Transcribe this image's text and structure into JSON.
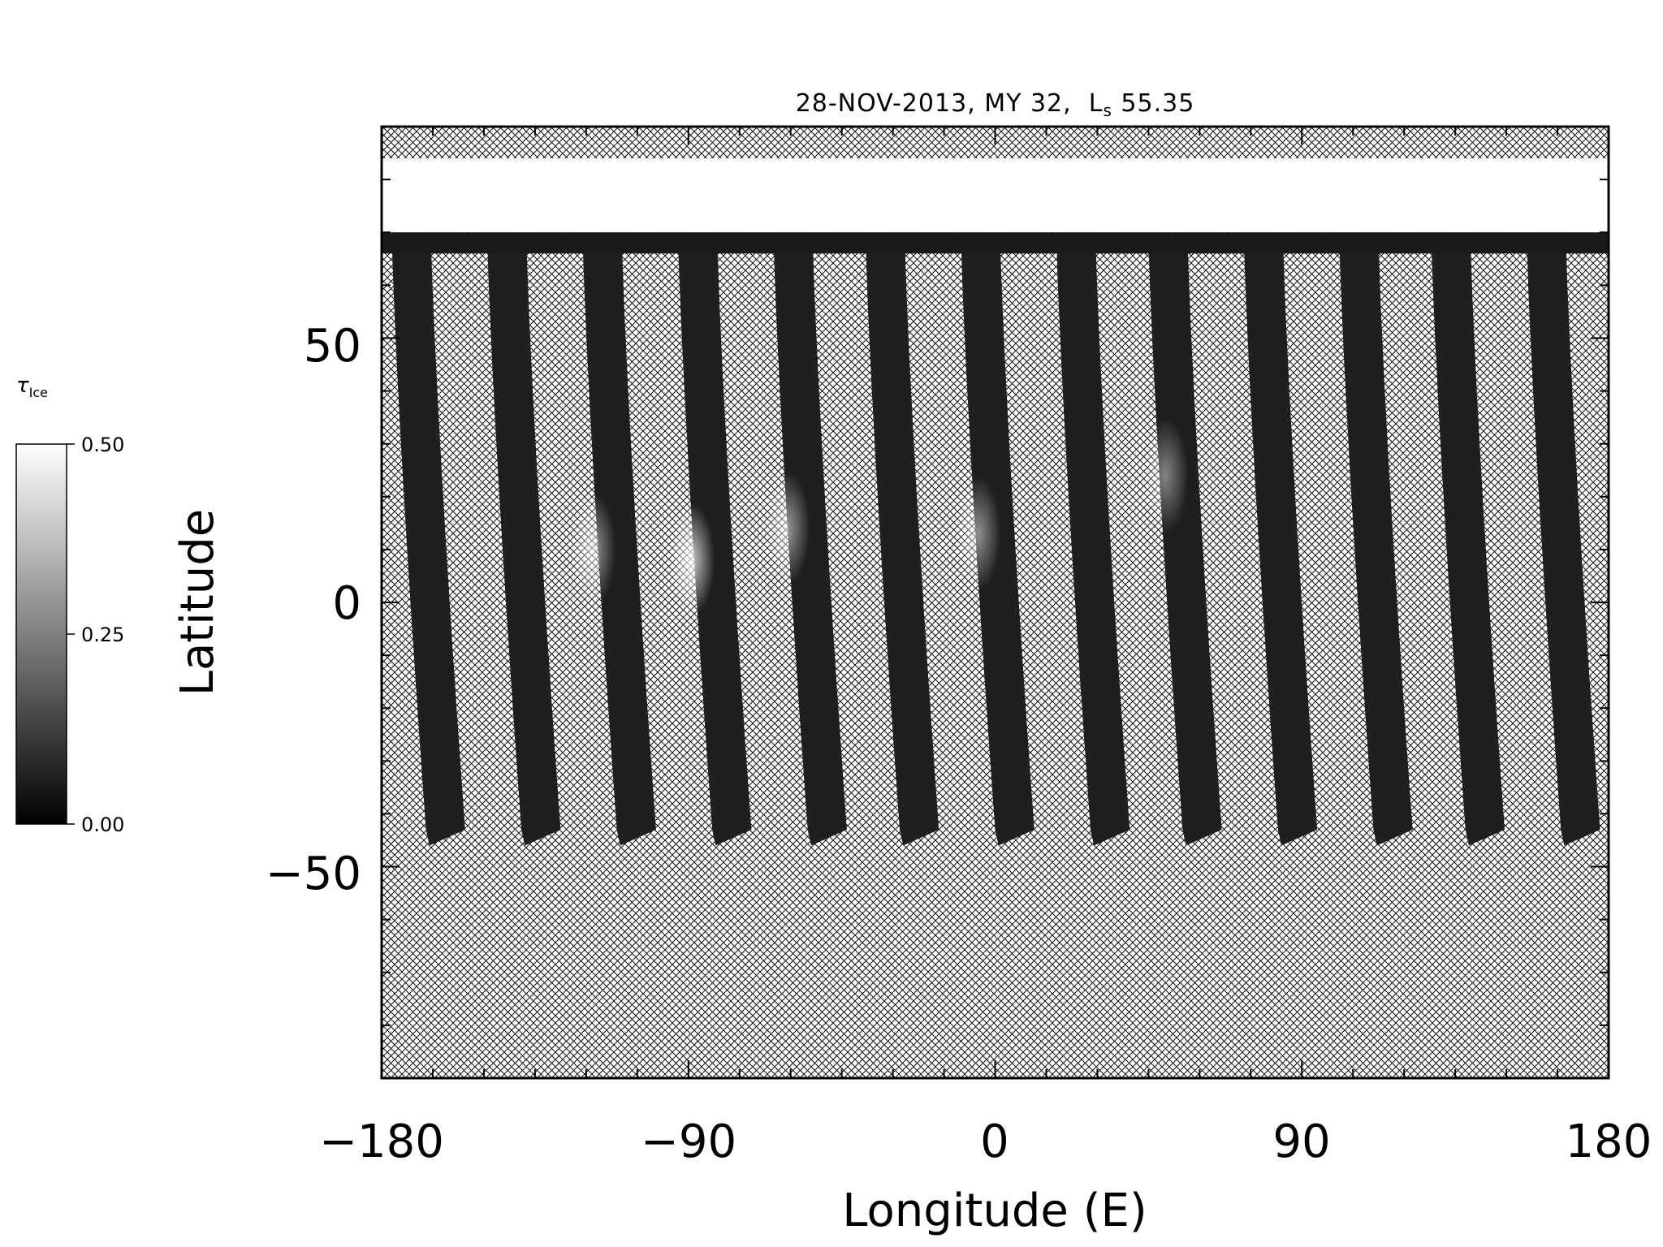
{
  "chart_data": {
    "type": "heatmap",
    "title": "28-NOV-2013, MY 32,  L",
    "title_subscript": "s",
    "title_suffix": " 55.35",
    "xlabel": "Longitude (E)",
    "ylabel": "Latitude",
    "xlim": [
      -180,
      180
    ],
    "ylim": [
      -90,
      90
    ],
    "x_ticks": [
      "−180",
      "−90",
      "0",
      "90",
      "180"
    ],
    "y_ticks": [
      "50",
      "0",
      "−50"
    ],
    "colorbar": {
      "label": "τ",
      "label_subscript": "Ice",
      "min": 0.0,
      "max": 0.5,
      "tick_labels": [
        "0.50",
        "0.25",
        "0.00"
      ],
      "colormap": "grayscale"
    },
    "no_data_pattern": "crosshatch",
    "polar_cap_ice_value": 0.5,
    "swath_count": 13,
    "swath_start_longitudes": [
      -177,
      -149,
      -121,
      -93,
      -65,
      -38,
      -10,
      18,
      45,
      73,
      101,
      128,
      156
    ],
    "swath_lat_range": [
      -43,
      69
    ],
    "bright_patches": [
      {
        "lon": -123,
        "lat": 10,
        "value": 0.3
      },
      {
        "lon": -94,
        "lat": 8,
        "value": 0.42
      },
      {
        "lon": -66,
        "lat": 14,
        "value": 0.3
      },
      {
        "lon": -10,
        "lat": 13,
        "value": 0.28
      },
      {
        "lon": 45,
        "lat": 24,
        "value": 0.25
      }
    ]
  },
  "colors": {
    "ice_cap": "#f7f7f7",
    "swath_dark": "#1e1e1e",
    "hatch_line": "#111111",
    "axis": "#000000"
  }
}
